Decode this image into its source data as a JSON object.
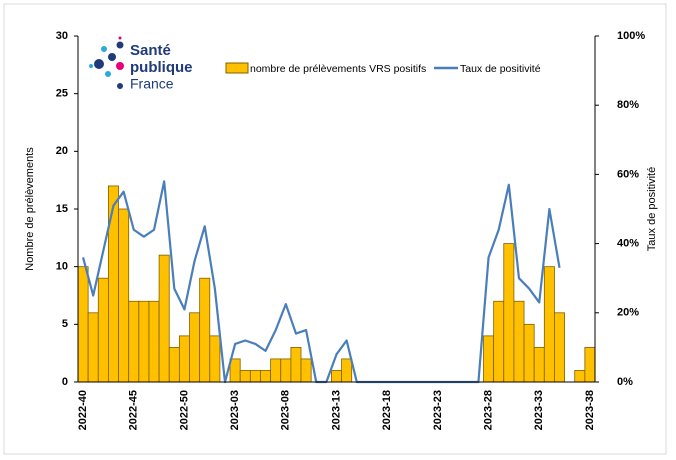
{
  "chart_data": {
    "type": "bar-line",
    "logo": [
      "Santé",
      "publique",
      "France"
    ],
    "y_label": "Nombre de prélèvements",
    "y2_label": "Taux de positivité",
    "categories": [
      "2022-40",
      null,
      null,
      null,
      null,
      "2022-45",
      null,
      null,
      null,
      null,
      "2022-50",
      null,
      null,
      null,
      null,
      "2023-03",
      null,
      null,
      null,
      null,
      "2023-08",
      null,
      null,
      null,
      null,
      "2023-13",
      null,
      null,
      null,
      null,
      "2023-18",
      null,
      null,
      null,
      null,
      "2023-23",
      null,
      null,
      null,
      null,
      "2023-28",
      null,
      null,
      null,
      null,
      "2023-33",
      null,
      null,
      null,
      null,
      "2023-38"
    ],
    "series": [
      {
        "name": "nombre de prélèvements VRS positifs",
        "color": "#FFC000",
        "kind": "bar",
        "values": [
          10,
          6,
          9,
          17,
          15,
          7,
          7,
          7,
          11,
          3,
          4,
          6,
          9,
          4,
          0,
          2,
          1,
          1,
          1,
          2,
          2,
          3,
          2,
          0,
          0,
          1,
          2,
          0,
          0,
          0,
          0,
          0,
          0,
          0,
          0,
          0,
          0,
          0,
          0,
          0,
          4,
          7,
          12,
          7,
          5,
          3,
          10,
          6,
          0,
          1,
          3
        ]
      },
      {
        "name": "Taux de positivité",
        "color": "#4A7EBB",
        "kind": "line",
        "axis": "y2",
        "values": [
          36,
          25,
          38,
          51,
          55,
          44,
          42,
          44,
          58,
          27,
          21,
          35,
          45,
          27,
          0,
          11,
          12,
          11,
          9,
          15,
          22.5,
          14,
          15,
          0,
          0,
          8,
          12,
          0,
          0,
          0,
          0,
          0,
          0,
          0,
          0,
          0,
          0,
          0,
          0,
          0,
          36,
          44,
          57,
          30,
          27,
          23,
          50,
          33,
          null,
          null,
          null
        ]
      }
    ],
    "ylim": [
      0,
      30
    ],
    "yticks": [
      0,
      5,
      10,
      15,
      20,
      25,
      30
    ],
    "y2lim": [
      0,
      100
    ],
    "y2ticks": [
      {
        "value": 0,
        "label": "0%"
      },
      {
        "value": 20,
        "label": "20%"
      },
      {
        "value": 40,
        "label": "40%"
      },
      {
        "value": 60,
        "label": "60%"
      },
      {
        "value": 80,
        "label": "80%"
      },
      {
        "value": 100,
        "label": "100%"
      }
    ]
  }
}
